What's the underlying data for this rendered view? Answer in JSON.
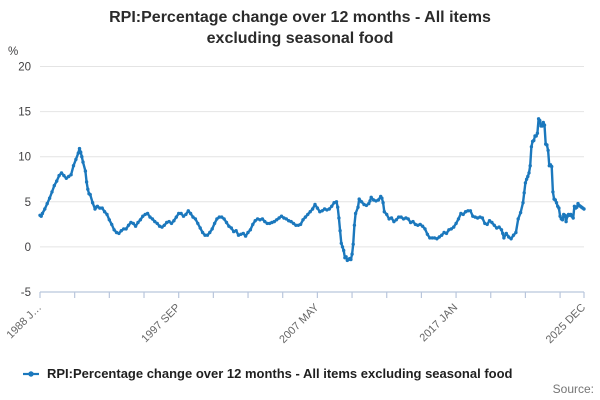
{
  "title": "RPI:Percentage change over 12 months - All items excluding seasonal food",
  "legend": {
    "label": "RPI:Percentage change over 12 months - All items excluding seasonal food"
  },
  "source_label": "Source:",
  "y_axis": {
    "unit_label": "%",
    "tick_labels": [
      20,
      15,
      10,
      5,
      0,
      -5
    ],
    "grid_values": [
      20,
      15,
      10,
      5,
      0
    ],
    "min": -5,
    "max": 20
  },
  "x_axis": {
    "total_months": 455,
    "minor_tick_interval_months": 29,
    "labels": [
      {
        "month": 0,
        "text": "1988 J…"
      },
      {
        "month": 116,
        "text": "1997 SEP"
      },
      {
        "month": 232,
        "text": "2007 MAY"
      },
      {
        "month": 348,
        "text": "2017 JAN"
      },
      {
        "month": 455,
        "text": "2025 DEC"
      }
    ]
  },
  "colors": {
    "line": "#1b78bd",
    "grid": "#e4e4e4",
    "axis": "#b9c6dc",
    "y_label": "#414042",
    "x_label": "#666666",
    "title": "#2b2b2b",
    "legend_text": "#1f1f1f",
    "source": "#757575"
  },
  "chart_data": {
    "type": "line",
    "series_name": "RPI:Percentage change over 12 months - All items excluding seasonal food",
    "x_start": "1988 JAN",
    "x_end": "2025 DEC",
    "xlabel": "",
    "ylabel": "%",
    "ylim": [
      -5,
      20
    ],
    "grid": true,
    "legend_position": "bottom",
    "points_format": "[months_since_1988_JAN, percent_change]",
    "points": [
      [
        0,
        3.5
      ],
      [
        1,
        3.4
      ],
      [
        2,
        3.7
      ],
      [
        4,
        4.2
      ],
      [
        6,
        4.8
      ],
      [
        8,
        5.4
      ],
      [
        10,
        6.1
      ],
      [
        12,
        6.8
      ],
      [
        14,
        7.3
      ],
      [
        16,
        7.9
      ],
      [
        18,
        8.2
      ],
      [
        20,
        7.9
      ],
      [
        22,
        7.6
      ],
      [
        24,
        7.8
      ],
      [
        26,
        8.0
      ],
      [
        28,
        9.0
      ],
      [
        30,
        9.7
      ],
      [
        32,
        10.4
      ],
      [
        33,
        10.9
      ],
      [
        34,
        10.5
      ],
      [
        35,
        10.0
      ],
      [
        36,
        9.4
      ],
      [
        38,
        8.4
      ],
      [
        39,
        7.2
      ],
      [
        40,
        6.4
      ],
      [
        41,
        5.9
      ],
      [
        42,
        5.8
      ],
      [
        44,
        4.9
      ],
      [
        46,
        4.2
      ],
      [
        47,
        4.4
      ],
      [
        48,
        4.5
      ],
      [
        50,
        4.3
      ],
      [
        52,
        4.3
      ],
      [
        54,
        3.9
      ],
      [
        56,
        3.6
      ],
      [
        58,
        3.0
      ],
      [
        60,
        2.5
      ],
      [
        62,
        1.9
      ],
      [
        64,
        1.6
      ],
      [
        66,
        1.5
      ],
      [
        68,
        1.8
      ],
      [
        70,
        2.0
      ],
      [
        72,
        2.0
      ],
      [
        74,
        2.4
      ],
      [
        76,
        2.7
      ],
      [
        78,
        2.6
      ],
      [
        80,
        2.3
      ],
      [
        82,
        2.7
      ],
      [
        84,
        3.0
      ],
      [
        86,
        3.4
      ],
      [
        88,
        3.6
      ],
      [
        90,
        3.7
      ],
      [
        92,
        3.3
      ],
      [
        94,
        3.1
      ],
      [
        96,
        2.8
      ],
      [
        98,
        2.6
      ],
      [
        100,
        2.3
      ],
      [
        102,
        2.2
      ],
      [
        104,
        2.4
      ],
      [
        106,
        2.7
      ],
      [
        108,
        2.8
      ],
      [
        110,
        2.6
      ],
      [
        112,
        2.9
      ],
      [
        114,
        3.3
      ],
      [
        116,
        3.7
      ],
      [
        118,
        3.7
      ],
      [
        120,
        3.4
      ],
      [
        122,
        3.6
      ],
      [
        124,
        4.0
      ],
      [
        126,
        3.7
      ],
      [
        128,
        3.3
      ],
      [
        130,
        3.1
      ],
      [
        132,
        2.6
      ],
      [
        134,
        2.1
      ],
      [
        136,
        1.6
      ],
      [
        138,
        1.3
      ],
      [
        140,
        1.3
      ],
      [
        142,
        1.6
      ],
      [
        144,
        2.0
      ],
      [
        146,
        2.6
      ],
      [
        148,
        3.1
      ],
      [
        150,
        3.3
      ],
      [
        152,
        3.3
      ],
      [
        154,
        3.1
      ],
      [
        156,
        2.7
      ],
      [
        158,
        2.3
      ],
      [
        160,
        2.1
      ],
      [
        162,
        1.7
      ],
      [
        164,
        1.8
      ],
      [
        166,
        1.3
      ],
      [
        168,
        1.4
      ],
      [
        170,
        1.5
      ],
      [
        172,
        1.2
      ],
      [
        174,
        1.6
      ],
      [
        176,
        1.9
      ],
      [
        178,
        2.5
      ],
      [
        180,
        2.9
      ],
      [
        182,
        3.1
      ],
      [
        184,
        3.0
      ],
      [
        186,
        3.1
      ],
      [
        188,
        2.8
      ],
      [
        190,
        2.6
      ],
      [
        192,
        2.6
      ],
      [
        194,
        2.7
      ],
      [
        196,
        2.8
      ],
      [
        198,
        3.0
      ],
      [
        200,
        3.2
      ],
      [
        202,
        3.4
      ],
      [
        204,
        3.2
      ],
      [
        206,
        3.1
      ],
      [
        208,
        2.9
      ],
      [
        210,
        2.8
      ],
      [
        212,
        2.6
      ],
      [
        214,
        2.4
      ],
      [
        216,
        2.4
      ],
      [
        218,
        2.5
      ],
      [
        220,
        3.0
      ],
      [
        222,
        3.3
      ],
      [
        224,
        3.6
      ],
      [
        226,
        3.9
      ],
      [
        228,
        4.2
      ],
      [
        230,
        4.7
      ],
      [
        232,
        4.3
      ],
      [
        234,
        3.9
      ],
      [
        236,
        4.0
      ],
      [
        238,
        4.2
      ],
      [
        240,
        4.1
      ],
      [
        242,
        4.2
      ],
      [
        244,
        4.5
      ],
      [
        246,
        4.9
      ],
      [
        248,
        5.0
      ],
      [
        249,
        4.4
      ],
      [
        250,
        3.2
      ],
      [
        251,
        1.8
      ],
      [
        252,
        0.4
      ],
      [
        253,
        0.0
      ],
      [
        254,
        -0.4
      ],
      [
        255,
        -1.2
      ],
      [
        256,
        -1.1
      ],
      [
        257,
        -1.5
      ],
      [
        258,
        -1.4
      ],
      [
        259,
        -1.3
      ],
      [
        260,
        -1.4
      ],
      [
        261,
        -0.8
      ],
      [
        262,
        0.3
      ],
      [
        263,
        2.4
      ],
      [
        264,
        3.7
      ],
      [
        266,
        4.4
      ],
      [
        267,
        5.3
      ],
      [
        269,
        5.0
      ],
      [
        271,
        4.7
      ],
      [
        273,
        4.6
      ],
      [
        275,
        4.8
      ],
      [
        276,
        5.1
      ],
      [
        277,
        5.5
      ],
      [
        279,
        5.2
      ],
      [
        281,
        5.1
      ],
      [
        283,
        5.2
      ],
      [
        285,
        5.6
      ],
      [
        286,
        5.4
      ],
      [
        287,
        4.9
      ],
      [
        288,
        3.9
      ],
      [
        290,
        3.6
      ],
      [
        292,
        3.1
      ],
      [
        294,
        3.2
      ],
      [
        296,
        2.8
      ],
      [
        298,
        3.0
      ],
      [
        300,
        3.3
      ],
      [
        302,
        3.3
      ],
      [
        304,
        3.1
      ],
      [
        306,
        3.2
      ],
      [
        308,
        3.1
      ],
      [
        310,
        2.7
      ],
      [
        312,
        2.8
      ],
      [
        314,
        2.5
      ],
      [
        316,
        2.4
      ],
      [
        318,
        2.5
      ],
      [
        320,
        2.3
      ],
      [
        322,
        2.0
      ],
      [
        324,
        1.4
      ],
      [
        326,
        1.0
      ],
      [
        328,
        1.0
      ],
      [
        330,
        1.0
      ],
      [
        332,
        0.9
      ],
      [
        334,
        1.1
      ],
      [
        336,
        1.3
      ],
      [
        338,
        1.6
      ],
      [
        340,
        1.5
      ],
      [
        342,
        1.9
      ],
      [
        344,
        2.0
      ],
      [
        346,
        2.2
      ],
      [
        348,
        2.6
      ],
      [
        350,
        3.1
      ],
      [
        352,
        3.7
      ],
      [
        354,
        3.6
      ],
      [
        356,
        3.9
      ],
      [
        358,
        4.0
      ],
      [
        360,
        4.0
      ],
      [
        362,
        3.4
      ],
      [
        364,
        3.3
      ],
      [
        366,
        3.2
      ],
      [
        368,
        3.3
      ],
      [
        370,
        3.2
      ],
      [
        372,
        2.6
      ],
      [
        374,
        2.5
      ],
      [
        376,
        2.9
      ],
      [
        378,
        2.7
      ],
      [
        380,
        2.4
      ],
      [
        382,
        2.1
      ],
      [
        384,
        2.2
      ],
      [
        386,
        1.9
      ],
      [
        387,
        1.5
      ],
      [
        388,
        1.0
      ],
      [
        390,
        1.5
      ],
      [
        392,
        1.1
      ],
      [
        394,
        0.9
      ],
      [
        396,
        1.3
      ],
      [
        398,
        1.6
      ],
      [
        400,
        3.1
      ],
      [
        402,
        3.8
      ],
      [
        404,
        4.9
      ],
      [
        405,
        6.0
      ],
      [
        406,
        7.1
      ],
      [
        407,
        7.5
      ],
      [
        408,
        7.8
      ],
      [
        409,
        8.2
      ],
      [
        410,
        9.0
      ],
      [
        411,
        11.1
      ],
      [
        412,
        11.7
      ],
      [
        413,
        11.8
      ],
      [
        414,
        12.3
      ],
      [
        415,
        12.3
      ],
      [
        416,
        12.6
      ],
      [
        417,
        14.2
      ],
      [
        418,
        14.0
      ],
      [
        419,
        13.4
      ],
      [
        420,
        13.4
      ],
      [
        421,
        13.8
      ],
      [
        422,
        13.5
      ],
      [
        423,
        11.4
      ],
      [
        424,
        11.3
      ],
      [
        425,
        10.7
      ],
      [
        426,
        9.0
      ],
      [
        427,
        9.1
      ],
      [
        428,
        8.9
      ],
      [
        429,
        6.1
      ],
      [
        430,
        5.3
      ],
      [
        431,
        5.2
      ],
      [
        432,
        4.9
      ],
      [
        433,
        4.5
      ],
      [
        434,
        4.3
      ],
      [
        435,
        3.4
      ],
      [
        436,
        3.1
      ],
      [
        437,
        3.0
      ],
      [
        438,
        3.6
      ],
      [
        439,
        3.5
      ],
      [
        440,
        2.8
      ],
      [
        441,
        3.4
      ],
      [
        442,
        3.6
      ],
      [
        443,
        3.5
      ],
      [
        444,
        3.6
      ],
      [
        445,
        3.4
      ],
      [
        446,
        3.2
      ],
      [
        447,
        4.5
      ],
      [
        448,
        4.3
      ],
      [
        449,
        4.4
      ],
      [
        450,
        4.8
      ],
      [
        451,
        4.6
      ],
      [
        452,
        4.5
      ],
      [
        453,
        4.4
      ],
      [
        454,
        4.3
      ],
      [
        455,
        4.2
      ]
    ]
  }
}
